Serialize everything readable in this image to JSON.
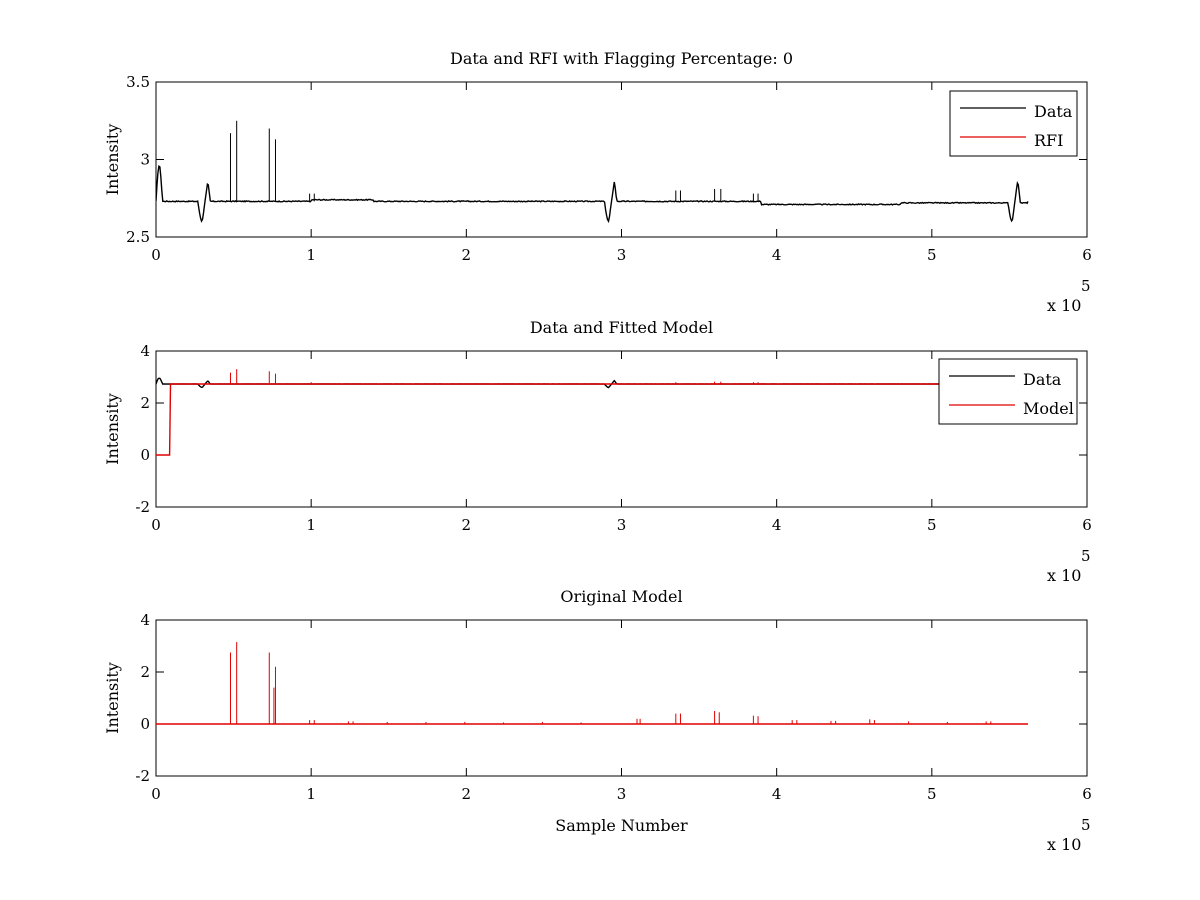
{
  "figure": {
    "background": "#ffffff",
    "data_color": "#000000",
    "rfi_color": "#e00000"
  },
  "chart_data": [
    {
      "type": "line",
      "title": "Data and RFI with Flagging Percentage: 0",
      "xlabel": "",
      "ylabel": "Intensity",
      "xlim": [
        0,
        6
      ],
      "ylim": [
        2.5,
        3.5
      ],
      "x_ticks": [
        "0",
        "1",
        "2",
        "3",
        "4",
        "5",
        "6"
      ],
      "y_ticks": [
        "2.5",
        "3",
        "3.5"
      ],
      "x_multiplier": "x 10",
      "x_multiplier_exponent": "5",
      "legend": {
        "position": "top-right",
        "entries": [
          "Data",
          "RFI"
        ]
      },
      "grid": false,
      "series": [
        {
          "name": "Data",
          "color": "#000000",
          "baseline": 2.73,
          "x_end": 5.62,
          "dips": [
            {
              "start": 0.27,
              "end": 0.35,
              "min": 2.6,
              "peak": 2.86
            },
            {
              "start": 2.89,
              "end": 2.97,
              "min": 2.6,
              "peak": 2.86
            },
            {
              "start": 5.49,
              "end": 5.57,
              "min": 2.6,
              "peak": 2.87
            }
          ],
          "start_bump": {
            "x": 0.02,
            "peak": 2.96
          },
          "spikes": [
            {
              "x": 0.48,
              "y": 3.17
            },
            {
              "x": 0.52,
              "y": 3.25
            },
            {
              "x": 0.73,
              "y": 3.2
            },
            {
              "x": 0.77,
              "y": 3.13
            },
            {
              "x": 0.99,
              "y": 2.78
            },
            {
              "x": 1.02,
              "y": 2.78
            },
            {
              "x": 3.35,
              "y": 2.8
            },
            {
              "x": 3.38,
              "y": 2.8
            },
            {
              "x": 3.6,
              "y": 2.81
            },
            {
              "x": 3.64,
              "y": 2.81
            },
            {
              "x": 3.85,
              "y": 2.78
            },
            {
              "x": 3.88,
              "y": 2.78
            }
          ],
          "segments": [
            {
              "from": 0.0,
              "to": 1.0,
              "y": 2.73
            },
            {
              "from": 1.0,
              "to": 1.4,
              "y": 2.74
            },
            {
              "from": 1.4,
              "to": 2.6,
              "y": 2.73
            },
            {
              "from": 2.6,
              "to": 3.9,
              "y": 2.73
            },
            {
              "from": 3.9,
              "to": 4.8,
              "y": 2.71
            },
            {
              "from": 4.8,
              "to": 5.62,
              "y": 2.72
            }
          ]
        },
        {
          "name": "RFI",
          "color": "#e00000",
          "values": []
        }
      ]
    },
    {
      "type": "line",
      "title": "Data and Fitted Model",
      "xlabel": "",
      "ylabel": "Intensity",
      "xlim": [
        0,
        6
      ],
      "ylim": [
        -2,
        4
      ],
      "x_ticks": [
        "0",
        "1",
        "2",
        "3",
        "4",
        "5",
        "6"
      ],
      "y_ticks": [
        "-2",
        "0",
        "2",
        "4"
      ],
      "x_multiplier": "x 10",
      "x_multiplier_exponent": "5",
      "legend": {
        "position": "top-right",
        "entries": [
          "Data",
          "Model"
        ]
      },
      "grid": false,
      "series": [
        {
          "name": "Data",
          "color": "#000000",
          "baseline": 2.73,
          "x_end": 5.62,
          "dips": [
            {
              "start": 0.27,
              "end": 0.35,
              "min": 2.6,
              "peak": 2.86
            },
            {
              "start": 2.89,
              "end": 2.97,
              "min": 2.6,
              "peak": 2.86
            }
          ],
          "start_bump": {
            "x": 0.02,
            "peak": 2.96
          }
        },
        {
          "name": "Model",
          "color": "#e00000",
          "baseline": 2.73,
          "step": {
            "until": 0.09,
            "y": 0.0
          },
          "x_end": 5.62,
          "spikes": [
            {
              "x": 0.48,
              "y": 3.17
            },
            {
              "x": 0.52,
              "y": 3.3
            },
            {
              "x": 0.73,
              "y": 3.22
            },
            {
              "x": 0.77,
              "y": 3.13
            },
            {
              "x": 1.0,
              "y": 2.8
            },
            {
              "x": 3.35,
              "y": 2.8
            },
            {
              "x": 3.6,
              "y": 2.82
            },
            {
              "x": 3.64,
              "y": 2.82
            },
            {
              "x": 3.85,
              "y": 2.8
            },
            {
              "x": 3.88,
              "y": 2.8
            }
          ]
        }
      ]
    },
    {
      "type": "line",
      "title": "Original Model",
      "xlabel": "Sample Number",
      "ylabel": "Intensity",
      "xlim": [
        0,
        6
      ],
      "ylim": [
        -2,
        4
      ],
      "x_ticks": [
        "0",
        "1",
        "2",
        "3",
        "4",
        "5",
        "6"
      ],
      "y_ticks": [
        "-2",
        "0",
        "2",
        "4"
      ],
      "x_multiplier": "x 10",
      "x_multiplier_exponent": "5",
      "grid": false,
      "series": [
        {
          "name": "",
          "color": "#e00000",
          "baseline": 0.0,
          "x_end": 5.62,
          "spikes": [
            {
              "x": 0.48,
              "y": 2.75
            },
            {
              "x": 0.52,
              "y": 3.15
            },
            {
              "x": 0.73,
              "y": 2.75
            },
            {
              "x": 0.76,
              "y": 1.4
            },
            {
              "x": 0.77,
              "y": 2.2
            },
            {
              "x": 0.99,
              "y": 0.15
            },
            {
              "x": 1.02,
              "y": 0.15
            },
            {
              "x": 1.24,
              "y": 0.1
            },
            {
              "x": 1.27,
              "y": 0.1
            },
            {
              "x": 1.49,
              "y": 0.08
            },
            {
              "x": 1.74,
              "y": 0.08
            },
            {
              "x": 1.99,
              "y": 0.08
            },
            {
              "x": 2.24,
              "y": 0.06
            },
            {
              "x": 2.49,
              "y": 0.08
            },
            {
              "x": 2.74,
              "y": 0.06
            },
            {
              "x": 3.1,
              "y": 0.2
            },
            {
              "x": 3.12,
              "y": 0.2
            },
            {
              "x": 3.35,
              "y": 0.4
            },
            {
              "x": 3.38,
              "y": 0.4
            },
            {
              "x": 3.6,
              "y": 0.5
            },
            {
              "x": 3.63,
              "y": 0.45
            },
            {
              "x": 3.85,
              "y": 0.32
            },
            {
              "x": 3.88,
              "y": 0.3
            },
            {
              "x": 4.1,
              "y": 0.15
            },
            {
              "x": 4.13,
              "y": 0.15
            },
            {
              "x": 4.35,
              "y": 0.12
            },
            {
              "x": 4.38,
              "y": 0.12
            },
            {
              "x": 4.6,
              "y": 0.18
            },
            {
              "x": 4.63,
              "y": 0.15
            },
            {
              "x": 4.85,
              "y": 0.1
            },
            {
              "x": 5.1,
              "y": 0.08
            },
            {
              "x": 5.35,
              "y": 0.1
            },
            {
              "x": 5.38,
              "y": 0.1
            }
          ]
        }
      ]
    }
  ]
}
